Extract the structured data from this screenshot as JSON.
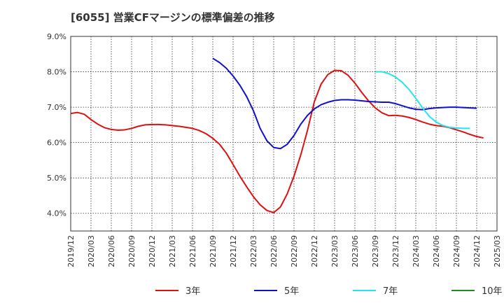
{
  "chart_data": {
    "type": "line",
    "title": "[6055]  営業CFマージンの標準偏差の推移",
    "xlabel": "",
    "ylabel": "",
    "x_ticks": [
      "2019/12",
      "2020/03",
      "2020/06",
      "2020/09",
      "2020/12",
      "2021/03",
      "2021/06",
      "2021/09",
      "2021/12",
      "2022/03",
      "2022/06",
      "2022/09",
      "2022/12",
      "2023/03",
      "2023/06",
      "2023/09",
      "2023/12",
      "2024/03",
      "2024/06",
      "2024/09",
      "2024/12",
      "2025/03"
    ],
    "y_ticks": [
      "4.0%",
      "5.0%",
      "6.0%",
      "7.0%",
      "8.0%",
      "9.0%"
    ],
    "ylim": [
      3.5,
      9.0
    ],
    "grid": true,
    "legend_position": "bottom",
    "series": [
      {
        "name": "3年",
        "color": "#dd1111",
        "points": [
          [
            "2019/12",
            6.82
          ],
          [
            "2020/01",
            6.85
          ],
          [
            "2020/02",
            6.8
          ],
          [
            "2020/03",
            6.65
          ],
          [
            "2020/04",
            6.52
          ],
          [
            "2020/05",
            6.42
          ],
          [
            "2020/06",
            6.37
          ],
          [
            "2020/07",
            6.35
          ],
          [
            "2020/08",
            6.36
          ],
          [
            "2020/09",
            6.4
          ],
          [
            "2020/10",
            6.46
          ],
          [
            "2020/11",
            6.5
          ],
          [
            "2020/12",
            6.51
          ],
          [
            "2021/01",
            6.51
          ],
          [
            "2021/02",
            6.5
          ],
          [
            "2021/03",
            6.48
          ],
          [
            "2021/04",
            6.46
          ],
          [
            "2021/05",
            6.43
          ],
          [
            "2021/06",
            6.4
          ],
          [
            "2021/07",
            6.34
          ],
          [
            "2021/08",
            6.25
          ],
          [
            "2021/09",
            6.12
          ],
          [
            "2021/10",
            5.95
          ],
          [
            "2021/11",
            5.7
          ],
          [
            "2021/12",
            5.38
          ],
          [
            "2022/01",
            5.05
          ],
          [
            "2022/02",
            4.75
          ],
          [
            "2022/03",
            4.47
          ],
          [
            "2022/04",
            4.24
          ],
          [
            "2022/05",
            4.08
          ],
          [
            "2022/06",
            4.02
          ],
          [
            "2022/07",
            4.18
          ],
          [
            "2022/08",
            4.55
          ],
          [
            "2022/09",
            5.05
          ],
          [
            "2022/10",
            5.65
          ],
          [
            "2022/11",
            6.35
          ],
          [
            "2022/12",
            7.15
          ],
          [
            "2023/01",
            7.65
          ],
          [
            "2023/02",
            7.92
          ],
          [
            "2023/03",
            8.04
          ],
          [
            "2023/04",
            8.03
          ],
          [
            "2023/05",
            7.9
          ],
          [
            "2023/06",
            7.68
          ],
          [
            "2023/07",
            7.42
          ],
          [
            "2023/08",
            7.18
          ],
          [
            "2023/09",
            6.98
          ],
          [
            "2023/10",
            6.84
          ],
          [
            "2023/11",
            6.76
          ],
          [
            "2023/12",
            6.77
          ],
          [
            "2024/01",
            6.75
          ],
          [
            "2024/02",
            6.71
          ],
          [
            "2024/03",
            6.65
          ],
          [
            "2024/04",
            6.58
          ],
          [
            "2024/05",
            6.52
          ],
          [
            "2024/06",
            6.48
          ],
          [
            "2024/07",
            6.46
          ],
          [
            "2024/08",
            6.42
          ],
          [
            "2024/09",
            6.36
          ],
          [
            "2024/10",
            6.3
          ],
          [
            "2024/11",
            6.23
          ],
          [
            "2024/12",
            6.17
          ],
          [
            "2025/01",
            6.13
          ]
        ]
      },
      {
        "name": "5年",
        "color": "#1111cc",
        "points": [
          [
            "2021/09",
            8.38
          ],
          [
            "2021/10",
            8.26
          ],
          [
            "2021/11",
            8.1
          ],
          [
            "2021/12",
            7.88
          ],
          [
            "2022/01",
            7.62
          ],
          [
            "2022/02",
            7.3
          ],
          [
            "2022/03",
            6.9
          ],
          [
            "2022/04",
            6.4
          ],
          [
            "2022/05",
            6.05
          ],
          [
            "2022/06",
            5.86
          ],
          [
            "2022/07",
            5.83
          ],
          [
            "2022/08",
            5.95
          ],
          [
            "2022/09",
            6.2
          ],
          [
            "2022/10",
            6.52
          ],
          [
            "2022/11",
            6.77
          ],
          [
            "2022/12",
            6.95
          ],
          [
            "2023/01",
            7.07
          ],
          [
            "2023/02",
            7.14
          ],
          [
            "2023/03",
            7.19
          ],
          [
            "2023/04",
            7.21
          ],
          [
            "2023/05",
            7.21
          ],
          [
            "2023/06",
            7.2
          ],
          [
            "2023/07",
            7.18
          ],
          [
            "2023/08",
            7.16
          ],
          [
            "2023/09",
            7.15
          ],
          [
            "2023/10",
            7.14
          ],
          [
            "2023/11",
            7.14
          ],
          [
            "2023/12",
            7.1
          ],
          [
            "2024/01",
            7.04
          ],
          [
            "2024/02",
            6.98
          ],
          [
            "2024/03",
            6.94
          ],
          [
            "2024/04",
            6.93
          ],
          [
            "2024/05",
            6.96
          ],
          [
            "2024/06",
            6.98
          ],
          [
            "2024/07",
            6.99
          ],
          [
            "2024/08",
            7.0
          ],
          [
            "2024/09",
            7.0
          ],
          [
            "2024/10",
            6.99
          ],
          [
            "2024/11",
            6.98
          ],
          [
            "2024/12",
            6.97
          ]
        ]
      },
      {
        "name": "7年",
        "color": "#22e5f0",
        "points": [
          [
            "2023/09",
            8.0
          ],
          [
            "2023/10",
            8.0
          ],
          [
            "2023/11",
            7.95
          ],
          [
            "2023/12",
            7.85
          ],
          [
            "2024/01",
            7.7
          ],
          [
            "2024/02",
            7.5
          ],
          [
            "2024/03",
            7.25
          ],
          [
            "2024/04",
            6.98
          ],
          [
            "2024/05",
            6.74
          ],
          [
            "2024/06",
            6.58
          ],
          [
            "2024/07",
            6.48
          ],
          [
            "2024/08",
            6.43
          ],
          [
            "2024/09",
            6.41
          ],
          [
            "2024/10",
            6.4
          ],
          [
            "2024/11",
            6.4
          ]
        ]
      },
      {
        "name": "10年",
        "color": "#228b22",
        "points": []
      }
    ]
  }
}
